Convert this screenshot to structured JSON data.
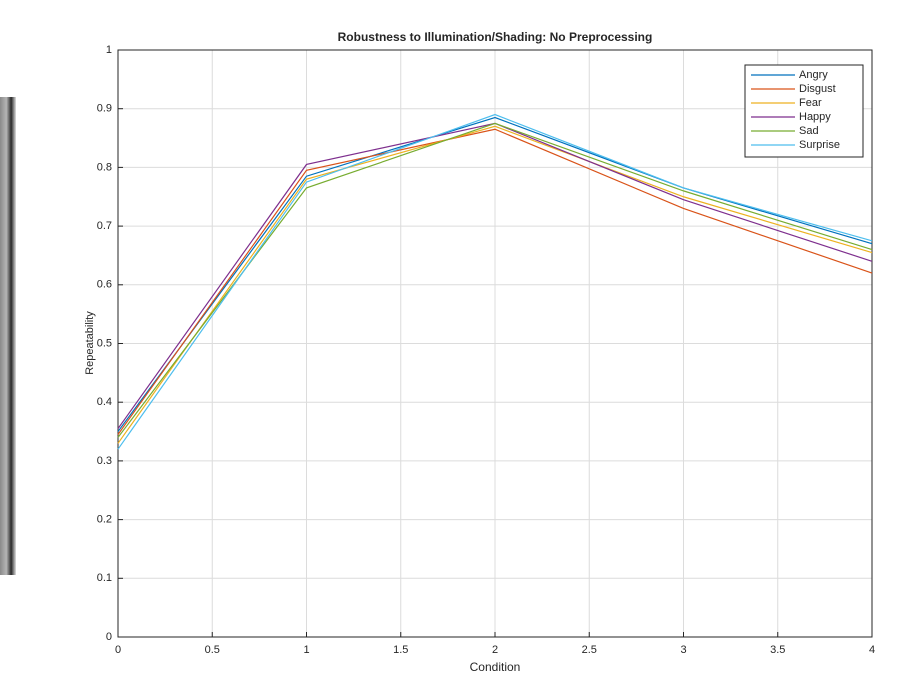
{
  "chart_data": {
    "type": "line",
    "title": "Robustness to Illumination/Shading: No Preprocessing",
    "x_label": "Condition",
    "y_label": "Repeatability",
    "x": [
      0,
      1,
      2,
      3,
      4
    ],
    "series": [
      {
        "name": "Angry",
        "color": "#0072bd",
        "values": [
          0.35,
          0.785,
          0.885,
          0.765,
          0.67
        ]
      },
      {
        "name": "Disgust",
        "color": "#d95319",
        "values": [
          0.345,
          0.795,
          0.865,
          0.73,
          0.62
        ]
      },
      {
        "name": "Fear",
        "color": "#edb120",
        "values": [
          0.33,
          0.78,
          0.87,
          0.75,
          0.655
        ]
      },
      {
        "name": "Happy",
        "color": "#7e2f8e",
        "values": [
          0.355,
          0.805,
          0.875,
          0.745,
          0.64
        ]
      },
      {
        "name": "Sad",
        "color": "#77ac30",
        "values": [
          0.34,
          0.765,
          0.875,
          0.76,
          0.66
        ]
      },
      {
        "name": "Surprise",
        "color": "#4dbeee",
        "values": [
          0.32,
          0.775,
          0.89,
          0.765,
          0.675
        ]
      }
    ],
    "xlim": [
      0,
      4
    ],
    "xticks": [
      0,
      0.5,
      1,
      1.5,
      2,
      2.5,
      3,
      3.5,
      4
    ],
    "ylim": [
      0,
      1
    ],
    "yticks": [
      0,
      0.1,
      0.2,
      0.3,
      0.4,
      0.5,
      0.6,
      0.7,
      0.8,
      0.9,
      1
    ],
    "grid": true,
    "legend": "top-right"
  }
}
